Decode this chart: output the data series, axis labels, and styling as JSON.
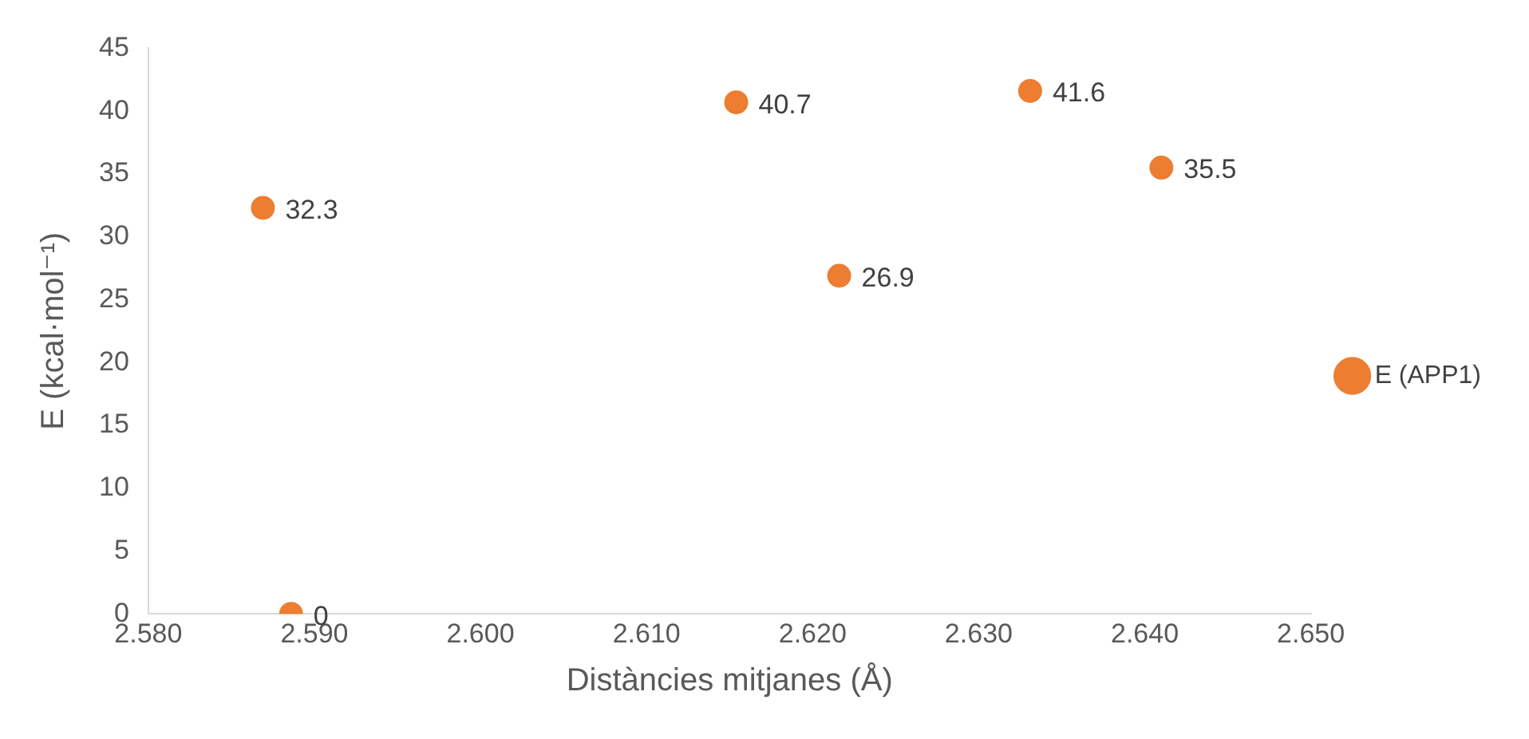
{
  "chart_data": {
    "type": "scatter",
    "xlabel": "Distàncies mitjanes (Å)",
    "ylabel": "E (kcal·mol⁻¹)",
    "x": [
      2.5869,
      2.5886,
      2.6154,
      2.6216,
      2.6331,
      2.641
    ],
    "series": [
      {
        "name": "E (APP1)",
        "color": "#ed7d31",
        "values": [
          32.3,
          0,
          40.7,
          26.9,
          41.6,
          35.5
        ]
      }
    ],
    "xlim": [
      2.58,
      2.65
    ],
    "xticks": [
      {
        "value": 2.58,
        "label": "2.580"
      },
      {
        "value": 2.59,
        "label": "2.590"
      },
      {
        "value": 2.6,
        "label": "2.600"
      },
      {
        "value": 2.61,
        "label": "2.610"
      },
      {
        "value": 2.62,
        "label": "2.620"
      },
      {
        "value": 2.63,
        "label": "2.630"
      },
      {
        "value": 2.64,
        "label": "2.640"
      },
      {
        "value": 2.65,
        "label": "2.650"
      }
    ],
    "ylim": [
      0,
      45
    ],
    "yticks": [
      0,
      5,
      10,
      15,
      20,
      25,
      30,
      35,
      40,
      45
    ],
    "data_labels": true,
    "legend": "right",
    "marker": "circle",
    "grid": false
  }
}
